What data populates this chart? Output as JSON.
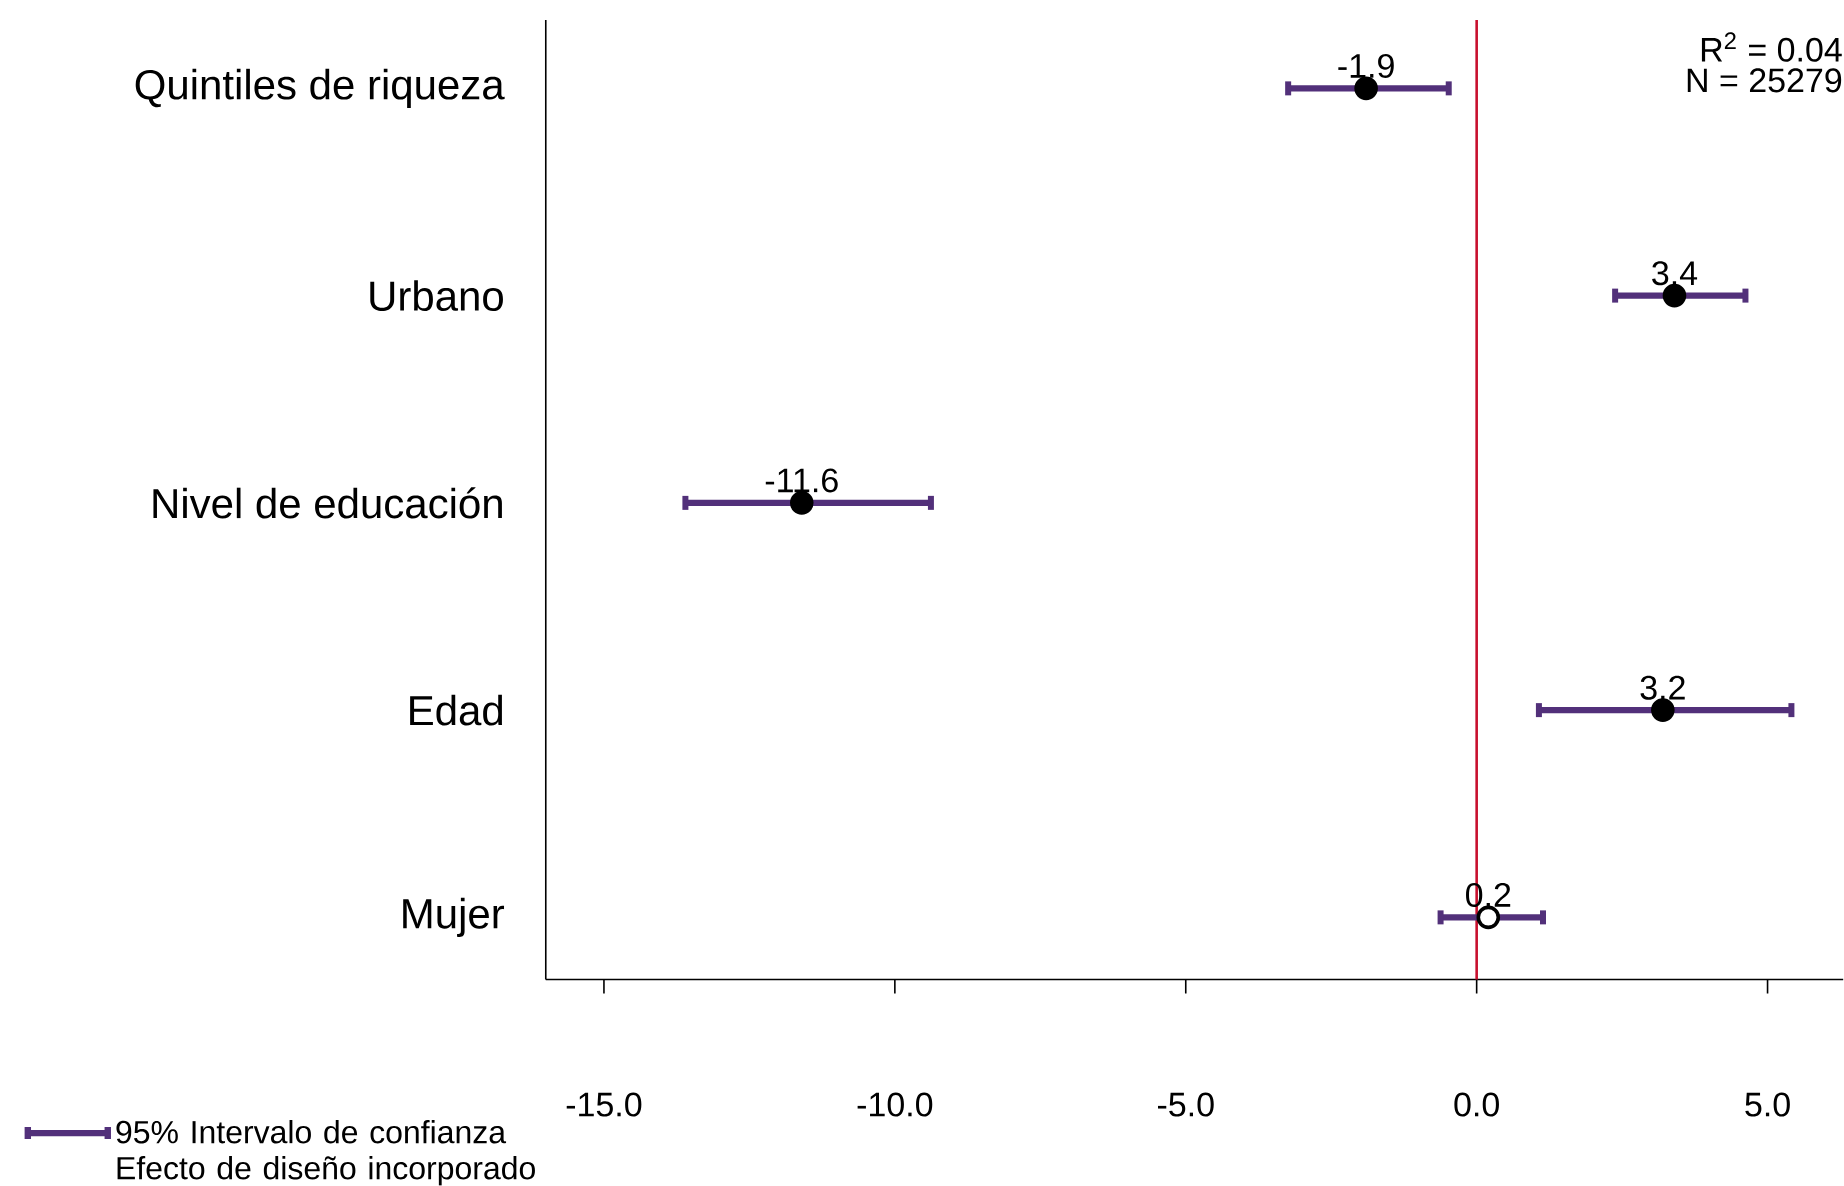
{
  "chart_data": {
    "type": "scatter",
    "orientation": "horizontal",
    "categories": [
      "Quintiles de riqueza",
      "Urbano",
      "Nivel de educación",
      "Edad",
      "Mujer"
    ],
    "series": [
      {
        "name": "95% Intervalo de confianza Efecto de diseño incorporado",
        "color": "#52307a",
        "values": [
          -1.9,
          3.4,
          -11.6,
          3.2,
          0.2
        ],
        "colors": [
          "#000000",
          "#000000",
          "#000000",
          "#000000",
          "#ffffff"
        ],
        "errors": [
          [
            -3.24,
            -0.48
          ],
          [
            2.38,
            4.62
          ],
          [
            -13.6,
            -9.38
          ],
          [
            1.07,
            5.41
          ],
          [
            -0.62,
            1.14
          ]
        ]
      }
    ],
    "xlim": [
      -16,
      6.3
    ],
    "xticks": [
      {
        "value": -15,
        "label": "-15.0"
      },
      {
        "value": -10,
        "label": "-10.0"
      },
      {
        "value": -5,
        "label": "-5.0"
      },
      {
        "value": 0,
        "label": "0.0"
      },
      {
        "value": 5,
        "label": "5.0"
      }
    ],
    "ref_lines": [
      {
        "axis": "x",
        "value": 0,
        "color": "#c8102e"
      }
    ],
    "annotations": [
      "R$^{2}$ =  0.04",
      "N =  25279"
    ],
    "data_labels": true,
    "marker": "circle",
    "legend": "bottom left",
    "grid": false
  }
}
